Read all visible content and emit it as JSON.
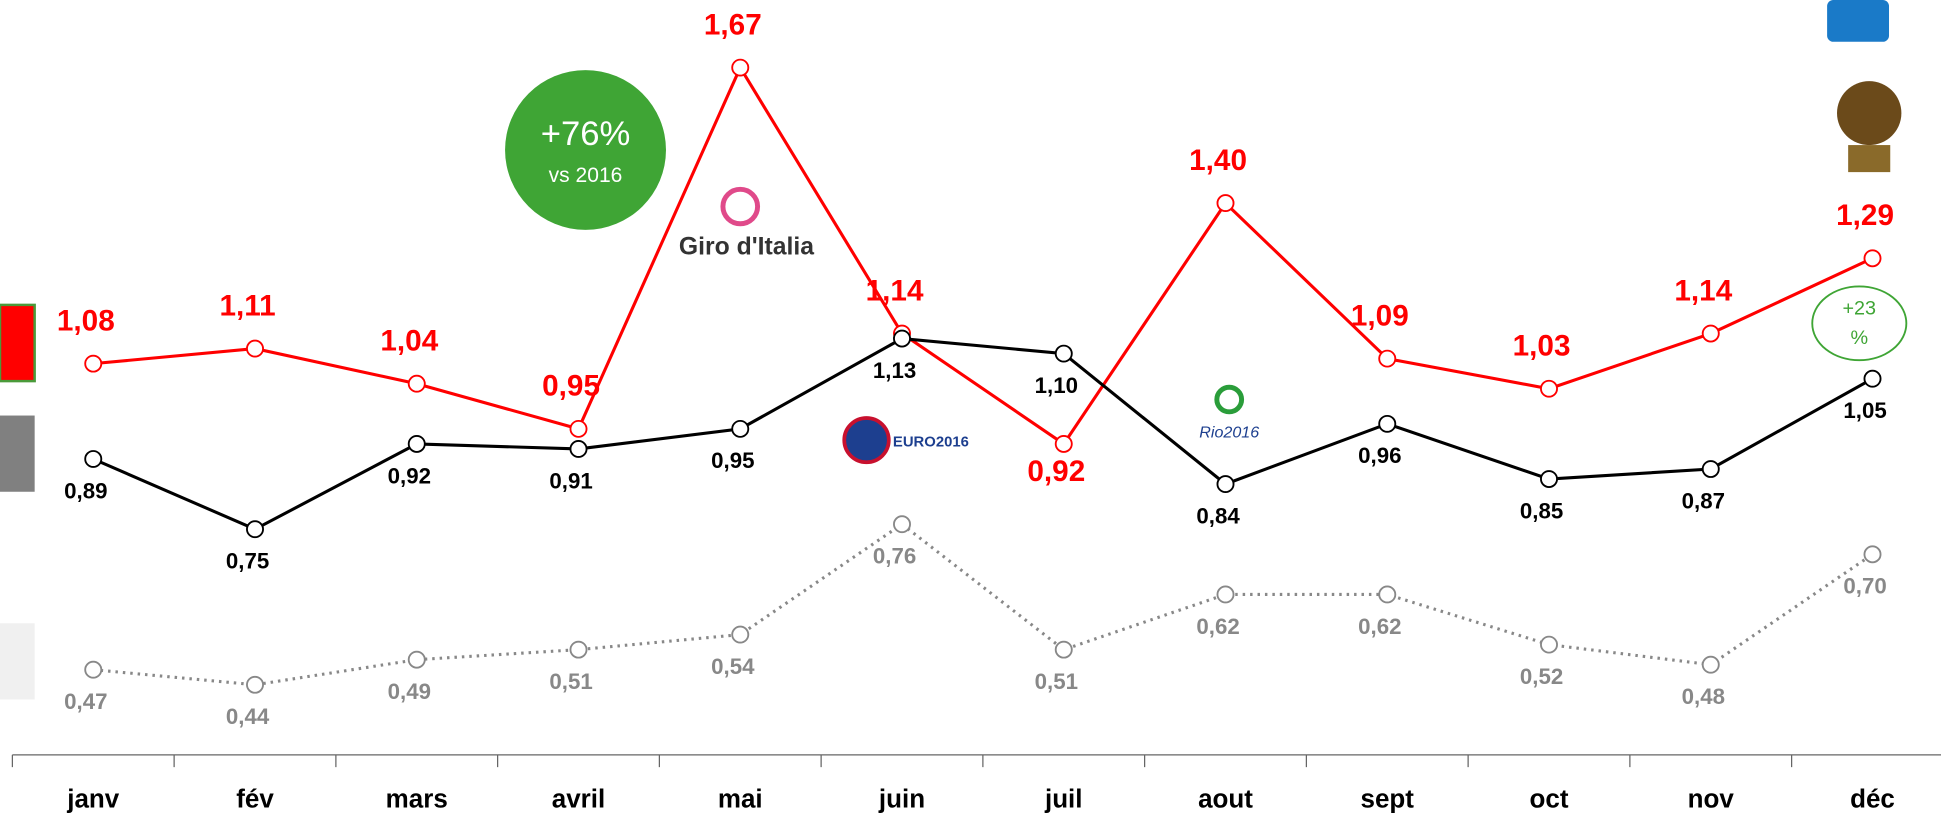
{
  "chart_data": {
    "type": "line",
    "categories": [
      "janv",
      "fév",
      "mars",
      "avril",
      "mai",
      "juin",
      "juil",
      "aout",
      "sept",
      "oct",
      "nov",
      "déc"
    ],
    "series": [
      {
        "color": "#ff0000",
        "style": "solid",
        "values": [
          1.08,
          1.11,
          1.04,
          0.95,
          1.67,
          1.14,
          0.92,
          1.4,
          1.09,
          1.03,
          1.14,
          1.29
        ],
        "value_labels": [
          "1,08",
          "1,11",
          "1,04",
          "0,95",
          "1,67",
          "1,14",
          "0,92",
          "1,40",
          "1,09",
          "1,03",
          "1,14",
          "1,29"
        ]
      },
      {
        "color": "#000000",
        "style": "solid",
        "values": [
          0.89,
          0.75,
          0.92,
          0.91,
          0.95,
          1.13,
          1.1,
          0.84,
          0.96,
          0.85,
          0.87,
          1.05
        ],
        "value_labels": [
          "0,89",
          "0,75",
          "0,92",
          "0,91",
          "0,95",
          "1,13",
          "1,10",
          "0,84",
          "0,96",
          "0,85",
          "0,87",
          "1,05"
        ]
      },
      {
        "color": "#888888",
        "style": "dotted",
        "values": [
          0.47,
          0.44,
          0.49,
          0.51,
          0.54,
          0.76,
          0.51,
          0.62,
          0.62,
          0.52,
          0.48,
          0.7
        ],
        "value_labels": [
          "0,47",
          "0,44",
          "0,49",
          "0,51",
          "0,54",
          "0,76",
          "0,51",
          "0,62",
          "0,62",
          "0,52",
          "0,48",
          "0,70"
        ]
      }
    ],
    "annotations": [
      "+76%",
      "vs 2016",
      "+23",
      "%"
    ],
    "logos": [
      "Giro d'Italia",
      "EURO2016",
      "Rio2016"
    ]
  }
}
